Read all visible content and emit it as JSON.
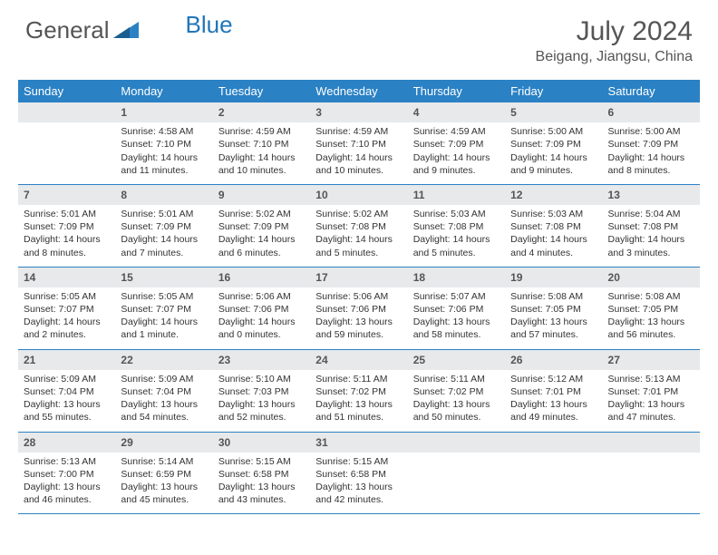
{
  "brand": {
    "text1": "General",
    "text2": "Blue"
  },
  "title": "July 2024",
  "location": "Beigang, Jiangsu, China",
  "colors": {
    "header_bg": "#2a81c4",
    "header_text": "#ffffff",
    "daynum_bg": "#e7e9eb",
    "week_border": "#2a81c4",
    "brand_blue": "#2176b8",
    "text": "#333333",
    "title_text": "#555555",
    "background": "#ffffff"
  },
  "fonts": {
    "month_title_size": 30,
    "location_size": 16,
    "dow_size": 13,
    "daynum_size": 12,
    "body_size": 10.5
  },
  "days_of_week": [
    "Sunday",
    "Monday",
    "Tuesday",
    "Wednesday",
    "Thursday",
    "Friday",
    "Saturday"
  ],
  "weeks": [
    [
      {
        "empty": true
      },
      {
        "num": "1",
        "sunrise": "4:58 AM",
        "sunset": "7:10 PM",
        "daylight": "14 hours and 11 minutes."
      },
      {
        "num": "2",
        "sunrise": "4:59 AM",
        "sunset": "7:10 PM",
        "daylight": "14 hours and 10 minutes."
      },
      {
        "num": "3",
        "sunrise": "4:59 AM",
        "sunset": "7:10 PM",
        "daylight": "14 hours and 10 minutes."
      },
      {
        "num": "4",
        "sunrise": "4:59 AM",
        "sunset": "7:09 PM",
        "daylight": "14 hours and 9 minutes."
      },
      {
        "num": "5",
        "sunrise": "5:00 AM",
        "sunset": "7:09 PM",
        "daylight": "14 hours and 9 minutes."
      },
      {
        "num": "6",
        "sunrise": "5:00 AM",
        "sunset": "7:09 PM",
        "daylight": "14 hours and 8 minutes."
      }
    ],
    [
      {
        "num": "7",
        "sunrise": "5:01 AM",
        "sunset": "7:09 PM",
        "daylight": "14 hours and 8 minutes."
      },
      {
        "num": "8",
        "sunrise": "5:01 AM",
        "sunset": "7:09 PM",
        "daylight": "14 hours and 7 minutes."
      },
      {
        "num": "9",
        "sunrise": "5:02 AM",
        "sunset": "7:09 PM",
        "daylight": "14 hours and 6 minutes."
      },
      {
        "num": "10",
        "sunrise": "5:02 AM",
        "sunset": "7:08 PM",
        "daylight": "14 hours and 5 minutes."
      },
      {
        "num": "11",
        "sunrise": "5:03 AM",
        "sunset": "7:08 PM",
        "daylight": "14 hours and 5 minutes."
      },
      {
        "num": "12",
        "sunrise": "5:03 AM",
        "sunset": "7:08 PM",
        "daylight": "14 hours and 4 minutes."
      },
      {
        "num": "13",
        "sunrise": "5:04 AM",
        "sunset": "7:08 PM",
        "daylight": "14 hours and 3 minutes."
      }
    ],
    [
      {
        "num": "14",
        "sunrise": "5:05 AM",
        "sunset": "7:07 PM",
        "daylight": "14 hours and 2 minutes."
      },
      {
        "num": "15",
        "sunrise": "5:05 AM",
        "sunset": "7:07 PM",
        "daylight": "14 hours and 1 minute."
      },
      {
        "num": "16",
        "sunrise": "5:06 AM",
        "sunset": "7:06 PM",
        "daylight": "14 hours and 0 minutes."
      },
      {
        "num": "17",
        "sunrise": "5:06 AM",
        "sunset": "7:06 PM",
        "daylight": "13 hours and 59 minutes."
      },
      {
        "num": "18",
        "sunrise": "5:07 AM",
        "sunset": "7:06 PM",
        "daylight": "13 hours and 58 minutes."
      },
      {
        "num": "19",
        "sunrise": "5:08 AM",
        "sunset": "7:05 PM",
        "daylight": "13 hours and 57 minutes."
      },
      {
        "num": "20",
        "sunrise": "5:08 AM",
        "sunset": "7:05 PM",
        "daylight": "13 hours and 56 minutes."
      }
    ],
    [
      {
        "num": "21",
        "sunrise": "5:09 AM",
        "sunset": "7:04 PM",
        "daylight": "13 hours and 55 minutes."
      },
      {
        "num": "22",
        "sunrise": "5:09 AM",
        "sunset": "7:04 PM",
        "daylight": "13 hours and 54 minutes."
      },
      {
        "num": "23",
        "sunrise": "5:10 AM",
        "sunset": "7:03 PM",
        "daylight": "13 hours and 52 minutes."
      },
      {
        "num": "24",
        "sunrise": "5:11 AM",
        "sunset": "7:02 PM",
        "daylight": "13 hours and 51 minutes."
      },
      {
        "num": "25",
        "sunrise": "5:11 AM",
        "sunset": "7:02 PM",
        "daylight": "13 hours and 50 minutes."
      },
      {
        "num": "26",
        "sunrise": "5:12 AM",
        "sunset": "7:01 PM",
        "daylight": "13 hours and 49 minutes."
      },
      {
        "num": "27",
        "sunrise": "5:13 AM",
        "sunset": "7:01 PM",
        "daylight": "13 hours and 47 minutes."
      }
    ],
    [
      {
        "num": "28",
        "sunrise": "5:13 AM",
        "sunset": "7:00 PM",
        "daylight": "13 hours and 46 minutes."
      },
      {
        "num": "29",
        "sunrise": "5:14 AM",
        "sunset": "6:59 PM",
        "daylight": "13 hours and 45 minutes."
      },
      {
        "num": "30",
        "sunrise": "5:15 AM",
        "sunset": "6:58 PM",
        "daylight": "13 hours and 43 minutes."
      },
      {
        "num": "31",
        "sunrise": "5:15 AM",
        "sunset": "6:58 PM",
        "daylight": "13 hours and 42 minutes."
      },
      {
        "empty": true
      },
      {
        "empty": true
      },
      {
        "empty": true
      }
    ]
  ],
  "labels": {
    "sunrise": "Sunrise:",
    "sunset": "Sunset:",
    "daylight": "Daylight:"
  }
}
